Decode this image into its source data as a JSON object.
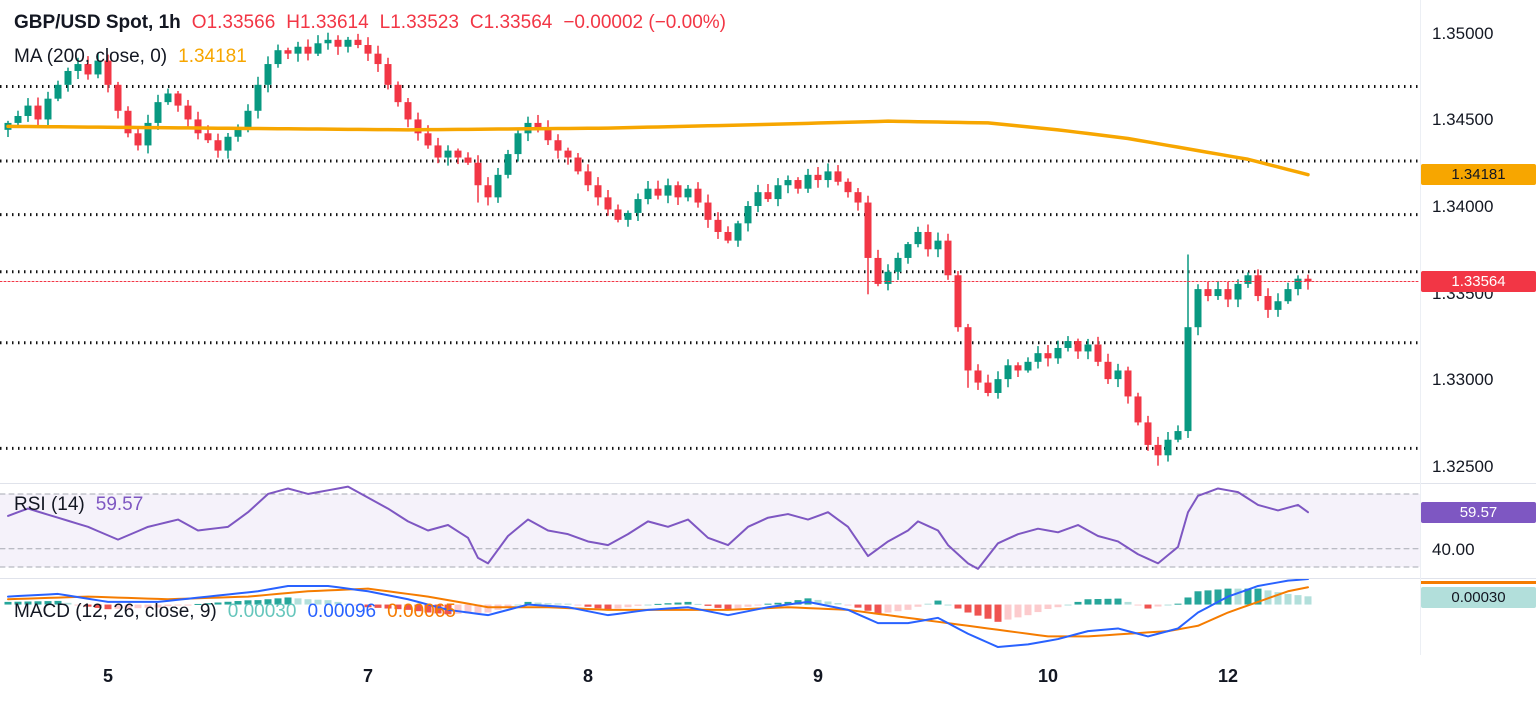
{
  "header": {
    "title": "GBP/USD Spot, 1h",
    "open": "O1.33566",
    "high": "H1.33614",
    "low": "L1.33523",
    "close": "C1.33564",
    "change": "−0.00002 (−0.00%)"
  },
  "ma_legend": {
    "label": "MA (200, close, 0)",
    "value": "1.34181"
  },
  "rsi_legend": {
    "label": "RSI (14)",
    "value": "59.57"
  },
  "macd_legend": {
    "label": "MACD (12, 26, close, 9)",
    "hist": "0.00030",
    "macd": "0.00096",
    "signal": "0.00065"
  },
  "axis": {
    "price_labels": [
      "1.35000",
      "1.34500",
      "1.34000",
      "1.33500",
      "1.33000",
      "1.32500"
    ],
    "price_label_values": [
      1.35,
      1.345,
      1.34,
      1.335,
      1.33,
      1.325
    ],
    "rsi_label": "40.00",
    "rsi_label_value": 40,
    "badges": {
      "ma": "1.34181",
      "price": "1.33564",
      "rsi": "59.57",
      "macd": "0.00030"
    }
  },
  "colors": {
    "up": "#089981",
    "down": "#f23645",
    "ma": "#f7a600",
    "rsi": "#7e57c2",
    "rsi_band_fill": "rgba(126,87,194,0.08)",
    "macd_line": "#2962ff",
    "signal_line": "#f57c00",
    "hist_pos": "#26a69a",
    "hist_pos_weak": "#b2dfdb",
    "hist_neg": "#ef5350",
    "hist_neg_weak": "#fccbcd",
    "dotted_level": "#111111",
    "current_price_line": "#f23645",
    "dashed_gray": "#a6a9b3"
  },
  "chart_data": {
    "type": "candlestick",
    "title": "GBP/USD Spot, 1h",
    "interval": "1h",
    "price": {
      "ylim": [
        1.324,
        1.3519
      ],
      "yticks": [
        1.35,
        1.345,
        1.34,
        1.335,
        1.33,
        1.325
      ],
      "dotted_levels": [
        1.3469,
        1.3426,
        1.3395,
        1.3362,
        1.3321,
        1.326
      ],
      "current_price": 1.33564,
      "ohlc_last": {
        "o": 1.33566,
        "h": 1.33614,
        "l": 1.33523,
        "c": 1.33564,
        "change": -2e-05,
        "change_pct": "-0.00%"
      },
      "closes": [
        1.3448,
        1.3452,
        1.3458,
        1.345,
        1.3462,
        1.347,
        1.3478,
        1.3482,
        1.3476,
        1.3484,
        1.347,
        1.3455,
        1.3442,
        1.3435,
        1.3448,
        1.346,
        1.3465,
        1.3458,
        1.345,
        1.3442,
        1.3438,
        1.3432,
        1.344,
        1.3445,
        1.3455,
        1.347,
        1.3482,
        1.349,
        1.3488,
        1.3492,
        1.3488,
        1.3494,
        1.3496,
        1.3492,
        1.3496,
        1.3493,
        1.3488,
        1.3482,
        1.347,
        1.346,
        1.345,
        1.3442,
        1.3435,
        1.3428,
        1.3432,
        1.3428,
        1.3425,
        1.3412,
        1.3405,
        1.3418,
        1.343,
        1.3442,
        1.3448,
        1.3445,
        1.3438,
        1.3432,
        1.3428,
        1.342,
        1.3412,
        1.3405,
        1.3398,
        1.3392,
        1.3396,
        1.3404,
        1.341,
        1.3406,
        1.3412,
        1.3405,
        1.341,
        1.3402,
        1.3392,
        1.3385,
        1.338,
        1.339,
        1.34,
        1.3408,
        1.3404,
        1.3412,
        1.3415,
        1.341,
        1.3418,
        1.3415,
        1.342,
        1.3414,
        1.3408,
        1.3402,
        1.337,
        1.3355,
        1.3362,
        1.337,
        1.3378,
        1.3385,
        1.3375,
        1.338,
        1.336,
        1.333,
        1.3305,
        1.3298,
        1.3292,
        1.33,
        1.3308,
        1.3305,
        1.331,
        1.3315,
        1.3312,
        1.3318,
        1.3322,
        1.3316,
        1.332,
        1.331,
        1.33,
        1.3305,
        1.329,
        1.3275,
        1.3262,
        1.3256,
        1.3265,
        1.327,
        1.333,
        1.3352,
        1.3348,
        1.3352,
        1.3346,
        1.3355,
        1.336,
        1.3348,
        1.334,
        1.3345,
        1.3352,
        1.3358,
        1.33564
      ],
      "wick_overrides": {
        "47": {
          "l": 1.3402
        },
        "86": {
          "l": 1.3349
        },
        "96": {
          "l": 1.3295
        },
        "115": {
          "l": 1.325
        },
        "118": {
          "h": 1.3372
        }
      },
      "ma200": {
        "value": 1.34181,
        "points": [
          [
            0,
            1.3446
          ],
          [
            20,
            1.3445
          ],
          [
            40,
            1.3444
          ],
          [
            60,
            1.3445
          ],
          [
            75,
            1.3447
          ],
          [
            88,
            1.3449
          ],
          [
            98,
            1.3448
          ],
          [
            105,
            1.3444
          ],
          [
            112,
            1.3439
          ],
          [
            118,
            1.3433
          ],
          [
            124,
            1.3427
          ],
          [
            130,
            1.34181
          ]
        ]
      }
    },
    "rsi": {
      "value": 59.57,
      "levels": [
        70,
        40,
        30
      ],
      "range": [
        24,
        76
      ],
      "points": [
        [
          0,
          58
        ],
        [
          2,
          62
        ],
        [
          5,
          57
        ],
        [
          8,
          52
        ],
        [
          11,
          45
        ],
        [
          14,
          52
        ],
        [
          17,
          56
        ],
        [
          19,
          50
        ],
        [
          22,
          52
        ],
        [
          24,
          60
        ],
        [
          26,
          70
        ],
        [
          28,
          73
        ],
        [
          30,
          70
        ],
        [
          32,
          72
        ],
        [
          34,
          74
        ],
        [
          36,
          68
        ],
        [
          38,
          62
        ],
        [
          40,
          55
        ],
        [
          42,
          50
        ],
        [
          44,
          53
        ],
        [
          46,
          46
        ],
        [
          47,
          35
        ],
        [
          48,
          32
        ],
        [
          50,
          47
        ],
        [
          52,
          56
        ],
        [
          54,
          50
        ],
        [
          56,
          48
        ],
        [
          58,
          44
        ],
        [
          60,
          42
        ],
        [
          62,
          48
        ],
        [
          64,
          55
        ],
        [
          66,
          52
        ],
        [
          68,
          56
        ],
        [
          70,
          46
        ],
        [
          72,
          42
        ],
        [
          74,
          52
        ],
        [
          76,
          57
        ],
        [
          78,
          59
        ],
        [
          80,
          56
        ],
        [
          82,
          60
        ],
        [
          84,
          52
        ],
        [
          86,
          36
        ],
        [
          88,
          44
        ],
        [
          90,
          50
        ],
        [
          91,
          55
        ],
        [
          93,
          50
        ],
        [
          94,
          42
        ],
        [
          96,
          32
        ],
        [
          97,
          29
        ],
        [
          99,
          43
        ],
        [
          101,
          48
        ],
        [
          103,
          51
        ],
        [
          105,
          49
        ],
        [
          107,
          53
        ],
        [
          109,
          47
        ],
        [
          111,
          44
        ],
        [
          113,
          37
        ],
        [
          115,
          32
        ],
        [
          117,
          41
        ],
        [
          118,
          60
        ],
        [
          119,
          69
        ],
        [
          121,
          73
        ],
        [
          123,
          71
        ],
        [
          125,
          64
        ],
        [
          127,
          61
        ],
        [
          129,
          64
        ],
        [
          130,
          60
        ]
      ]
    },
    "macd": {
      "hist_value": 0.0003,
      "macd_value": 0.00096,
      "signal_value": 0.00065,
      "range": [
        -0.0019,
        0.001
      ],
      "macd_points": [
        [
          0,
          0.0003
        ],
        [
          5,
          0.0004
        ],
        [
          10,
          0.0001
        ],
        [
          15,
          0.0001
        ],
        [
          20,
          0.0003
        ],
        [
          25,
          0.0005
        ],
        [
          28,
          0.0007
        ],
        [
          32,
          0.0007
        ],
        [
          36,
          0.0005
        ],
        [
          40,
          0.0002
        ],
        [
          44,
          -0.0002
        ],
        [
          48,
          -0.0004
        ],
        [
          52,
          0.0
        ],
        [
          56,
          -0.0001
        ],
        [
          60,
          -0.0004
        ],
        [
          64,
          -0.0002
        ],
        [
          68,
          -0.0001
        ],
        [
          72,
          -0.0004
        ],
        [
          76,
          -0.0001
        ],
        [
          80,
          0.0001
        ],
        [
          84,
          -0.0002
        ],
        [
          87,
          -0.0007
        ],
        [
          90,
          -0.0007
        ],
        [
          93,
          -0.0005
        ],
        [
          96,
          -0.0011
        ],
        [
          99,
          -0.0016
        ],
        [
          102,
          -0.0015
        ],
        [
          105,
          -0.0013
        ],
        [
          108,
          -0.001
        ],
        [
          111,
          -0.0009
        ],
        [
          114,
          -0.0012
        ],
        [
          117,
          -0.0009
        ],
        [
          119,
          -0.0003
        ],
        [
          122,
          0.0003
        ],
        [
          125,
          0.0007
        ],
        [
          128,
          0.0009
        ],
        [
          130,
          0.00096
        ]
      ],
      "signal_points": [
        [
          0,
          0.0002
        ],
        [
          8,
          0.0003
        ],
        [
          16,
          0.0002
        ],
        [
          24,
          0.0003
        ],
        [
          30,
          0.0005
        ],
        [
          36,
          0.0006
        ],
        [
          42,
          0.0003
        ],
        [
          48,
          -0.0001
        ],
        [
          54,
          -0.0001
        ],
        [
          60,
          -0.0002
        ],
        [
          66,
          -0.0002
        ],
        [
          72,
          -0.0002
        ],
        [
          78,
          -0.0001
        ],
        [
          84,
          -0.0002
        ],
        [
          90,
          -0.0005
        ],
        [
          96,
          -0.0008
        ],
        [
          100,
          -0.001
        ],
        [
          104,
          -0.0012
        ],
        [
          108,
          -0.0012
        ],
        [
          112,
          -0.0011
        ],
        [
          116,
          -0.001
        ],
        [
          119,
          -0.0008
        ],
        [
          122,
          -0.0003
        ],
        [
          125,
          0.0001
        ],
        [
          128,
          0.0005
        ],
        [
          130,
          0.00065
        ]
      ]
    },
    "time_ticks": [
      [
        10,
        "5"
      ],
      [
        36,
        "7"
      ],
      [
        58,
        "8"
      ],
      [
        81,
        "9"
      ],
      [
        104,
        "10"
      ],
      [
        122,
        "12"
      ]
    ]
  }
}
